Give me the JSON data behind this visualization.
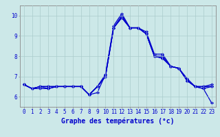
{
  "xlabel": "Graphe des températures (°c)",
  "xlim": [
    -0.5,
    23.5
  ],
  "ylim": [
    5.5,
    10.5
  ],
  "yticks": [
    6,
    7,
    8,
    9,
    10
  ],
  "xticks": [
    0,
    1,
    2,
    3,
    4,
    5,
    6,
    7,
    8,
    9,
    10,
    11,
    12,
    13,
    14,
    15,
    16,
    17,
    18,
    19,
    20,
    21,
    22,
    23
  ],
  "background_color": "#cce8e8",
  "line_color": "#0000cc",
  "grid_color": "#aacccc",
  "curves": [
    [
      6.6,
      6.4,
      6.5,
      6.5,
      6.5,
      6.5,
      6.5,
      6.5,
      6.1,
      6.2,
      7.1,
      9.5,
      10.1,
      9.4,
      9.4,
      9.2,
      8.1,
      8.1,
      7.5,
      7.4,
      6.8,
      6.5,
      6.5,
      6.6
    ],
    [
      6.6,
      6.4,
      6.4,
      6.4,
      6.5,
      6.5,
      6.5,
      6.5,
      6.1,
      6.5,
      7.0,
      9.4,
      9.9,
      9.4,
      9.4,
      9.1,
      8.0,
      8.0,
      7.5,
      7.4,
      6.9,
      6.5,
      6.5,
      6.5
    ],
    [
      6.6,
      6.4,
      6.5,
      6.5,
      6.5,
      6.5,
      6.5,
      6.5,
      6.1,
      6.5,
      7.0,
      9.4,
      9.9,
      9.4,
      9.4,
      9.1,
      8.0,
      7.9,
      7.5,
      7.4,
      6.8,
      6.5,
      6.5,
      6.5
    ],
    [
      6.6,
      6.4,
      6.5,
      6.5,
      6.5,
      6.5,
      6.5,
      6.5,
      6.1,
      6.5,
      7.1,
      9.4,
      10.0,
      9.4,
      9.4,
      9.1,
      8.0,
      7.9,
      7.5,
      7.4,
      6.8,
      6.5,
      6.4,
      6.5
    ],
    [
      6.6,
      6.4,
      6.5,
      6.4,
      6.5,
      6.5,
      6.5,
      6.5,
      6.1,
      6.5,
      7.0,
      9.4,
      9.9,
      9.4,
      9.4,
      9.1,
      8.0,
      7.9,
      7.5,
      7.4,
      6.8,
      6.5,
      6.4,
      5.7
    ]
  ],
  "marker": "D",
  "marker_size": 2.0,
  "line_width": 0.9,
  "tick_fontsize": 5.5,
  "label_fontsize": 7.0
}
